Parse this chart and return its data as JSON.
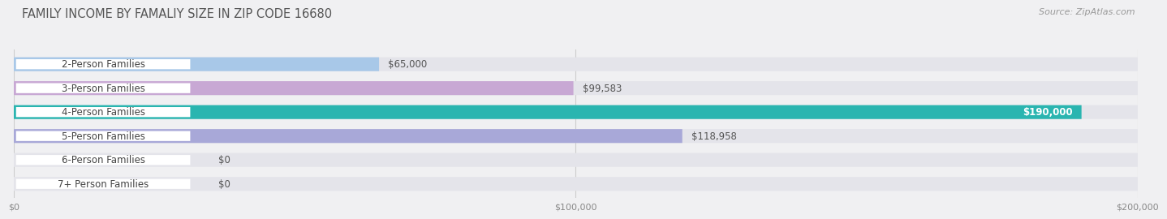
{
  "title": "FAMILY INCOME BY FAMALIY SIZE IN ZIP CODE 16680",
  "source": "Source: ZipAtlas.com",
  "categories": [
    "2-Person Families",
    "3-Person Families",
    "4-Person Families",
    "5-Person Families",
    "6-Person Families",
    "7+ Person Families"
  ],
  "values": [
    65000,
    99583,
    190000,
    118958,
    0,
    0
  ],
  "bar_colors": [
    "#a8c8e8",
    "#c8a8d4",
    "#2ab5b0",
    "#a8a8d8",
    "#f4a0b0",
    "#f4c890"
  ],
  "value_labels": [
    "$65,000",
    "$99,583",
    "$190,000",
    "$118,958",
    "$0",
    "$0"
  ],
  "value_inside": [
    false,
    false,
    true,
    false,
    false,
    false
  ],
  "xmax": 200000,
  "xticks": [
    0,
    100000,
    200000
  ],
  "xtick_labels": [
    "$0",
    "$100,000",
    "$200,000"
  ],
  "background_color": "#f0f0f2",
  "bar_bg_color": "#e4e4ea",
  "title_fontsize": 10.5,
  "source_fontsize": 8,
  "cat_fontsize": 8.5,
  "val_fontsize": 8.5,
  "bar_height": 0.58,
  "bar_gap": 0.42
}
